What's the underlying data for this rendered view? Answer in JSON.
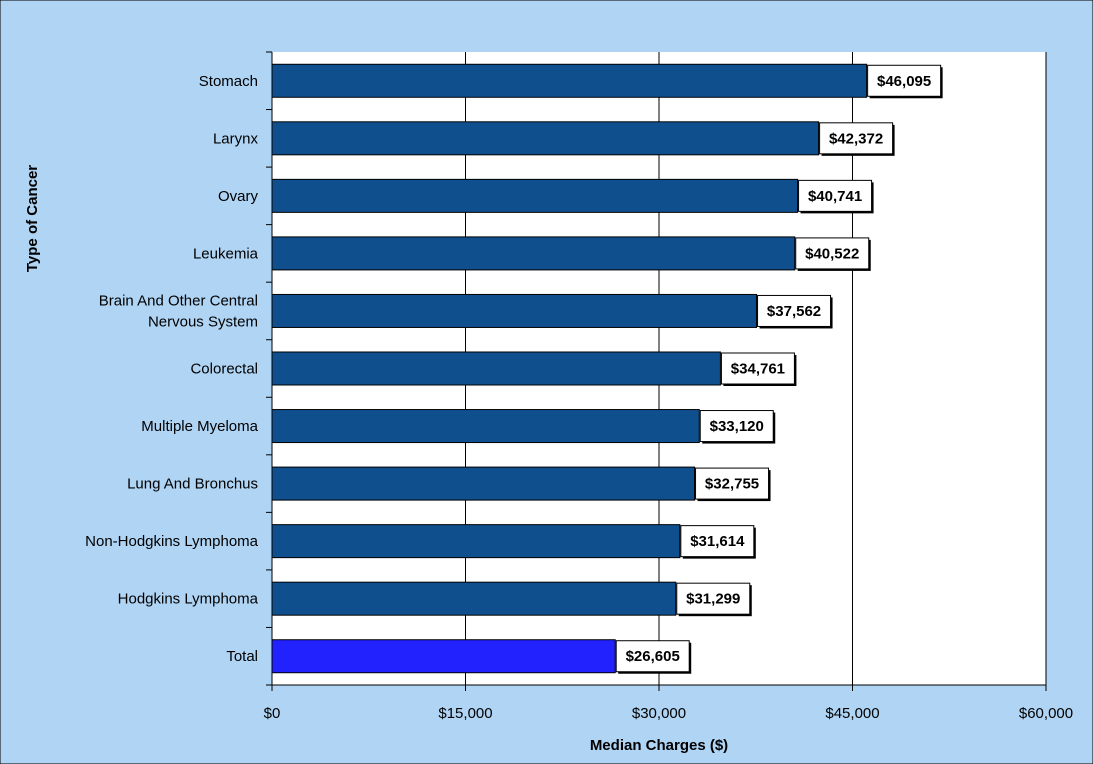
{
  "chart_data": {
    "type": "bar",
    "orientation": "horizontal",
    "categories": [
      "Stomach",
      "Larynx",
      "Ovary",
      "Leukemia",
      "Brain And Other Central Nervous System",
      "Colorectal",
      "Multiple Myeloma",
      "Lung And Bronchus",
      "Non-Hodgkins Lymphoma",
      "Hodgkins Lymphoma",
      "Total"
    ],
    "category_lines": [
      [
        "Stomach"
      ],
      [
        "Larynx"
      ],
      [
        "Ovary"
      ],
      [
        "Leukemia"
      ],
      [
        "Brain And Other Central",
        "Nervous System"
      ],
      [
        "Colorectal"
      ],
      [
        "Multiple Myeloma"
      ],
      [
        "Lung And Bronchus"
      ],
      [
        "Non-Hodgkins Lymphoma"
      ],
      [
        "Hodgkins Lymphoma"
      ],
      [
        "Total"
      ]
    ],
    "values": [
      46095,
      42372,
      40741,
      40522,
      37562,
      34761,
      33120,
      32755,
      31614,
      31299,
      26605
    ],
    "data_labels": [
      "$46,095",
      "$42,372",
      "$40,741",
      "$40,522",
      "$37,562",
      "$34,761",
      "$33,120",
      "$32,755",
      "$31,614",
      "$31,299",
      "$26,605"
    ],
    "highlight_category": "Total",
    "xlabel": "Median Charges ($)",
    "ylabel": "Type of Cancer",
    "xlim": [
      0,
      60000
    ],
    "xticks": [
      0,
      15000,
      30000,
      45000,
      60000
    ],
    "xtick_labels": [
      "$0",
      "$15,000",
      "$30,000",
      "$45,000",
      "$60,000"
    ],
    "gridlines": "vertical",
    "legend": "none"
  },
  "colors": {
    "outer_background": "#b0d4f4",
    "plot_background": "#ffffff",
    "bar": "#0f4f8e",
    "highlight_bar": "#2222ff",
    "gridline": "#000000",
    "label_box": "#ffffff"
  }
}
